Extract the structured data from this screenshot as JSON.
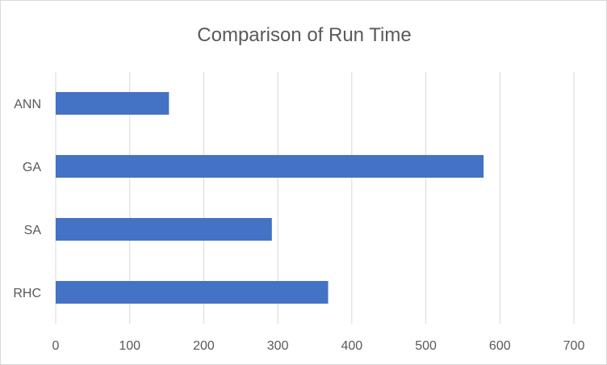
{
  "chart_data": {
    "type": "bar",
    "orientation": "horizontal",
    "title": "Comparison of Run Time",
    "xlabel": "",
    "ylabel": "",
    "categories": [
      "ANN",
      "GA",
      "SA",
      "RHC"
    ],
    "values": [
      153,
      578,
      292,
      368
    ],
    "xlim": [
      0,
      700
    ],
    "xticks": [
      0,
      100,
      200,
      300,
      400,
      500,
      600,
      700
    ],
    "grid": "vertical",
    "legend": "none",
    "colors": {
      "bar": "#4472c4",
      "grid": "#d9d9d9",
      "text": "#595959"
    }
  }
}
